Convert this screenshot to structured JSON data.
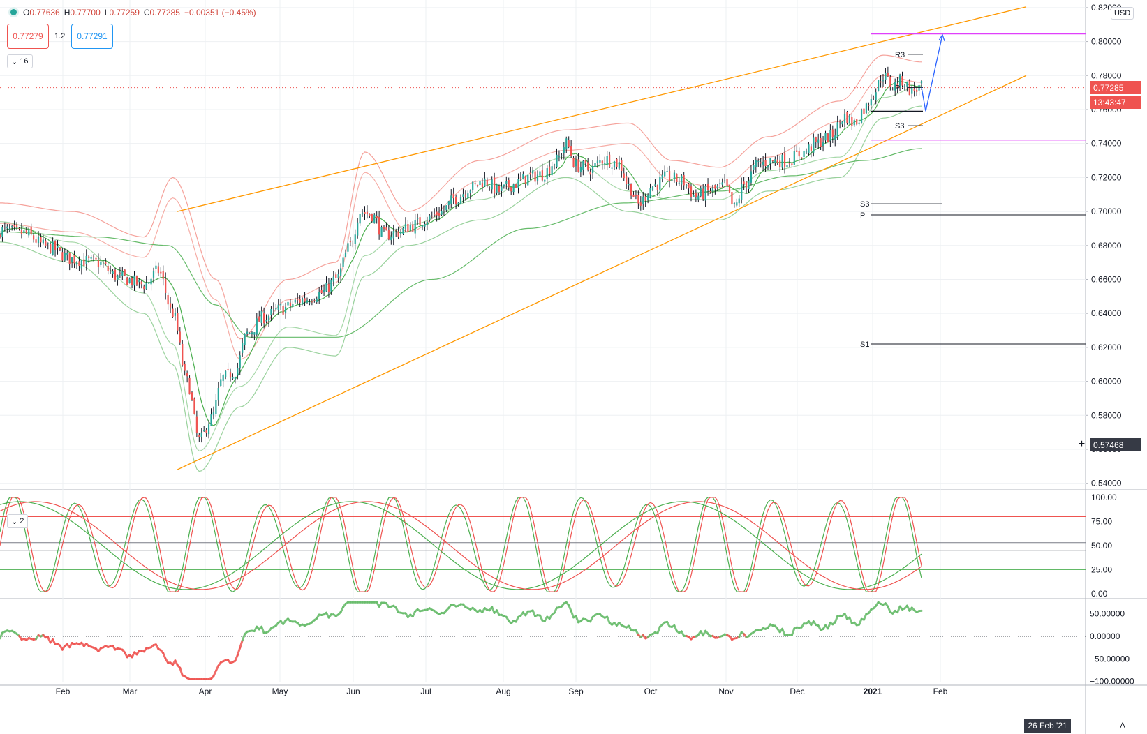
{
  "legend": {
    "open_label": "O",
    "open": "0.77636",
    "high_label": "H",
    "high": "0.77700",
    "low_label": "L",
    "low": "0.77259",
    "close_label": "C",
    "close": "0.77285",
    "change": "−0.00351 (−0.45%)"
  },
  "quote": {
    "bid": "0.77279",
    "spread": "1.2",
    "ask": "0.77291"
  },
  "collapse_buttons": {
    "main": "16",
    "stoch": "2"
  },
  "price_axis": {
    "currency": "USD",
    "last_price": "0.77285",
    "countdown": "13:43:47",
    "crosshair_price": "0.57468",
    "crosshair_plus": "+"
  },
  "date_label": "26 Feb '21",
  "auto_button": "A",
  "colors": {
    "up": "#26a69a",
    "down": "#ef5350",
    "channel": "#ff9800",
    "magenta": "#e040fb",
    "bb_red": "#f28b82",
    "bb_green": "#81c784",
    "projection": "#2962ff"
  },
  "chart_data": [
    {
      "type": "candlestick",
      "title": "",
      "x_ticks": [
        "Feb",
        "Mar",
        "Apr",
        "May",
        "Jun",
        "Jul",
        "Aug",
        "Sep",
        "Oct",
        "Nov",
        "Dec",
        "2021",
        "Feb"
      ],
      "y_ticks": [
        "0.82000",
        "0.80000",
        "0.78000",
        "0.76000",
        "0.74000",
        "0.72000",
        "0.70000",
        "0.68000",
        "0.66000",
        "0.64000",
        "0.62000",
        "0.60000",
        "0.58000",
        "0.56000",
        "0.54000"
      ],
      "ylim": [
        0.537,
        0.822
      ],
      "close_anchors": [
        [
          0,
          0.689
        ],
        [
          10,
          0.687
        ],
        [
          20,
          0.679
        ],
        [
          30,
          0.672
        ],
        [
          40,
          0.67
        ],
        [
          50,
          0.661
        ],
        [
          60,
          0.657
        ],
        [
          66,
          0.665
        ],
        [
          72,
          0.64
        ],
        [
          78,
          0.6
        ],
        [
          83,
          0.565
        ],
        [
          88,
          0.578
        ],
        [
          93,
          0.602
        ],
        [
          98,
          0.606
        ],
        [
          103,
          0.628
        ],
        [
          110,
          0.638
        ],
        [
          118,
          0.643
        ],
        [
          126,
          0.648
        ],
        [
          134,
          0.652
        ],
        [
          140,
          0.66
        ],
        [
          146,
          0.68
        ],
        [
          150,
          0.7
        ],
        [
          155,
          0.698
        ],
        [
          160,
          0.686
        ],
        [
          166,
          0.688
        ],
        [
          172,
          0.692
        ],
        [
          178,
          0.696
        ],
        [
          184,
          0.7
        ],
        [
          190,
          0.708
        ],
        [
          196,
          0.714
        ],
        [
          202,
          0.718
        ],
        [
          208,
          0.712
        ],
        [
          214,
          0.716
        ],
        [
          220,
          0.72
        ],
        [
          226,
          0.722
        ],
        [
          232,
          0.73
        ],
        [
          236,
          0.74
        ],
        [
          240,
          0.727
        ],
        [
          246,
          0.725
        ],
        [
          252,
          0.731
        ],
        [
          258,
          0.728
        ],
        [
          262,
          0.715
        ],
        [
          266,
          0.704
        ],
        [
          272,
          0.715
        ],
        [
          278,
          0.72
        ],
        [
          284,
          0.718
        ],
        [
          290,
          0.709
        ],
        [
          296,
          0.712
        ],
        [
          302,
          0.715
        ],
        [
          306,
          0.702
        ],
        [
          310,
          0.716
        ],
        [
          316,
          0.728
        ],
        [
          322,
          0.73
        ],
        [
          328,
          0.73
        ],
        [
          334,
          0.734
        ],
        [
          340,
          0.74
        ],
        [
          346,
          0.744
        ],
        [
          352,
          0.756
        ],
        [
          356,
          0.752
        ],
        [
          360,
          0.76
        ],
        [
          364,
          0.77
        ],
        [
          368,
          0.78
        ],
        [
          372,
          0.774
        ],
        [
          376,
          0.777
        ],
        [
          380,
          0.771
        ],
        [
          384,
          0.773
        ]
      ],
      "bollinger_upper_anchors": [
        [
          0,
          0.705
        ],
        [
          30,
          0.7
        ],
        [
          60,
          0.685
        ],
        [
          72,
          0.72
        ],
        [
          90,
          0.66
        ],
        [
          100,
          0.625
        ],
        [
          120,
          0.66
        ],
        [
          140,
          0.67
        ],
        [
          152,
          0.735
        ],
        [
          170,
          0.7
        ],
        [
          200,
          0.73
        ],
        [
          236,
          0.748
        ],
        [
          262,
          0.752
        ],
        [
          280,
          0.73
        ],
        [
          300,
          0.726
        ],
        [
          320,
          0.744
        ],
        [
          350,
          0.765
        ],
        [
          368,
          0.792
        ],
        [
          384,
          0.788
        ]
      ],
      "bollinger_lower_anchors": [
        [
          0,
          0.682
        ],
        [
          30,
          0.67
        ],
        [
          60,
          0.64
        ],
        [
          72,
          0.61
        ],
        [
          83,
          0.547
        ],
        [
          100,
          0.585
        ],
        [
          120,
          0.62
        ],
        [
          140,
          0.615
        ],
        [
          152,
          0.662
        ],
        [
          170,
          0.68
        ],
        [
          200,
          0.695
        ],
        [
          236,
          0.72
        ],
        [
          262,
          0.7
        ],
        [
          280,
          0.695
        ],
        [
          300,
          0.695
        ],
        [
          320,
          0.712
        ],
        [
          350,
          0.72
        ],
        [
          368,
          0.755
        ],
        [
          384,
          0.762
        ]
      ],
      "sma200_anchors": [
        [
          0,
          0.688
        ],
        [
          40,
          0.685
        ],
        [
          70,
          0.68
        ],
        [
          90,
          0.645
        ],
        [
          104,
          0.626
        ],
        [
          140,
          0.626
        ],
        [
          180,
          0.66
        ],
        [
          220,
          0.69
        ],
        [
          260,
          0.705
        ],
        [
          300,
          0.712
        ],
        [
          330,
          0.721
        ],
        [
          360,
          0.73
        ],
        [
          384,
          0.737
        ]
      ],
      "channel_upper": {
        "from": [
          75,
          0.7
        ],
        "to": [
          384,
          0.818
        ]
      },
      "channel_lower": {
        "from": [
          75,
          0.548
        ],
        "to": [
          384,
          0.78
        ]
      },
      "pivot_labels": [
        {
          "label": "R3",
          "value": 0.7925
        },
        {
          "label": "P",
          "value": 0.773
        },
        {
          "label": "S3",
          "value": 0.7505
        },
        {
          "label": "S3",
          "value": 0.7045
        },
        {
          "label": "P",
          "value": 0.698
        },
        {
          "label": "S1",
          "value": 0.622
        }
      ],
      "magenta_levels": [
        0.8045,
        0.742
      ],
      "projection": [
        [
          0.773
        ],
        [
          0.759
        ],
        [
          0.804
        ]
      ]
    },
    {
      "type": "line",
      "title": "",
      "y_ticks": [
        "100.00",
        "75.00",
        "50.00",
        "25.00",
        "0.00"
      ],
      "ylim": [
        -3,
        105
      ],
      "levels": [
        80,
        53,
        45,
        25
      ]
    },
    {
      "type": "line",
      "title": "",
      "y_ticks": [
        "50.00000",
        "0.00000",
        "−50.00000",
        "−100.00000"
      ],
      "ylim": [
        -102,
        80
      ],
      "zero_line": 0
    }
  ]
}
